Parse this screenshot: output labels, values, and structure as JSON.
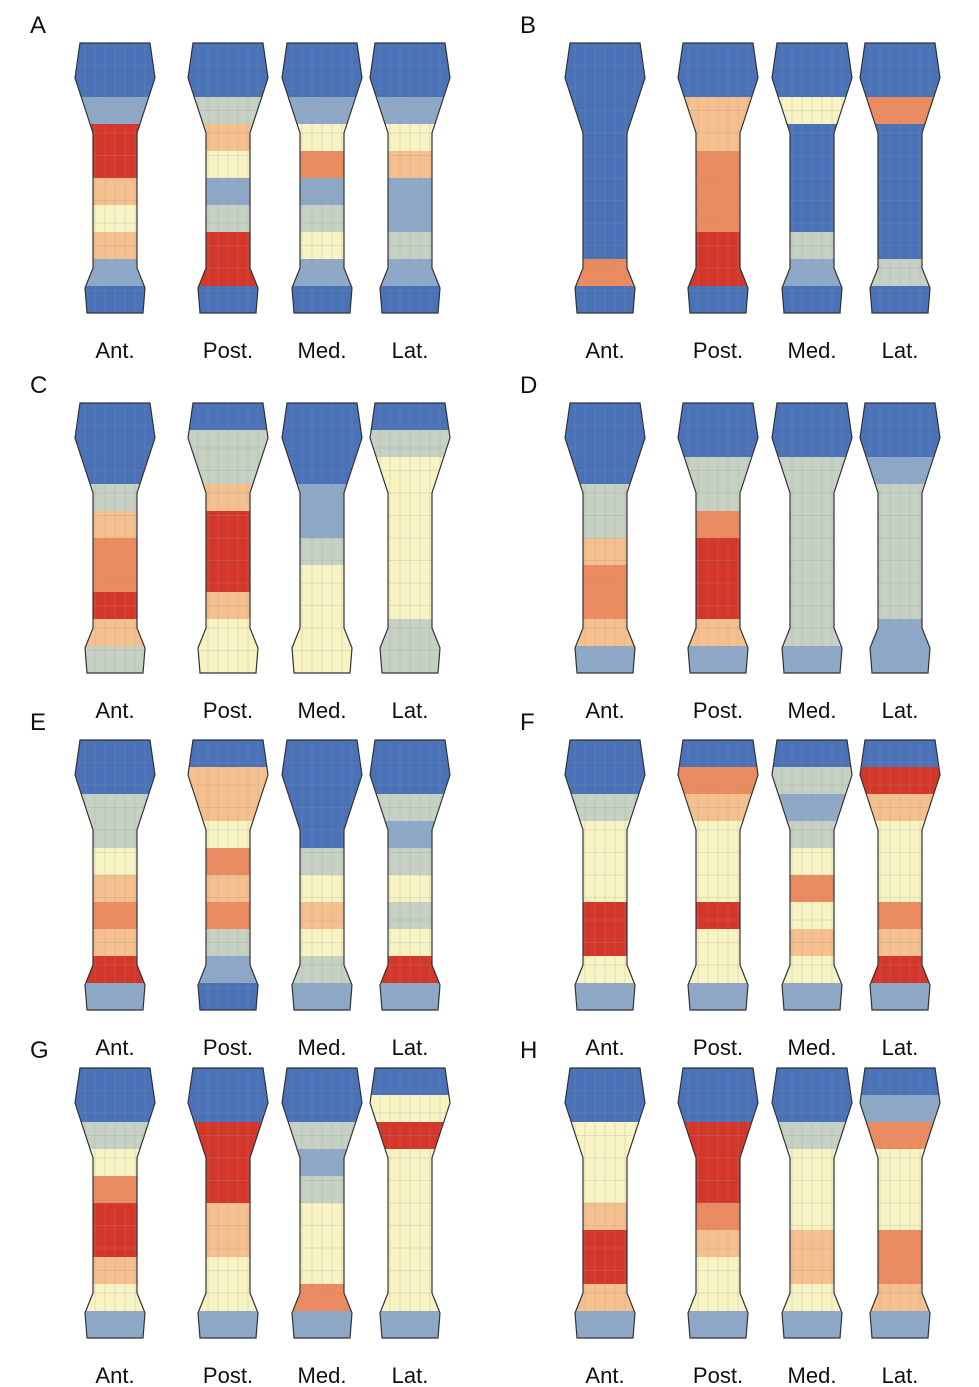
{
  "panels": [
    {
      "label": "A",
      "views": [
        "Ant.",
        "Post.",
        "Med.",
        "Lat."
      ]
    },
    {
      "label": "B",
      "views": [
        "Ant.",
        "Post.",
        "Med.",
        "Lat."
      ]
    },
    {
      "label": "C",
      "views": [
        "Ant.",
        "Post.",
        "Med.",
        "Lat."
      ]
    },
    {
      "label": "D",
      "views": [
        "Ant.",
        "Post.",
        "Med.",
        "Lat."
      ]
    },
    {
      "label": "E",
      "views": [
        "Ant.",
        "Post.",
        "Med.",
        "Lat."
      ]
    },
    {
      "label": "F",
      "views": [
        "Ant.",
        "Post.",
        "Med.",
        "Lat."
      ]
    },
    {
      "label": "G",
      "views": [
        "Ant.",
        "Post.",
        "Med.",
        "Lat."
      ]
    },
    {
      "label": "H",
      "views": [
        "Ant.",
        "Post.",
        "Med.",
        "Lat."
      ]
    }
  ]
}
